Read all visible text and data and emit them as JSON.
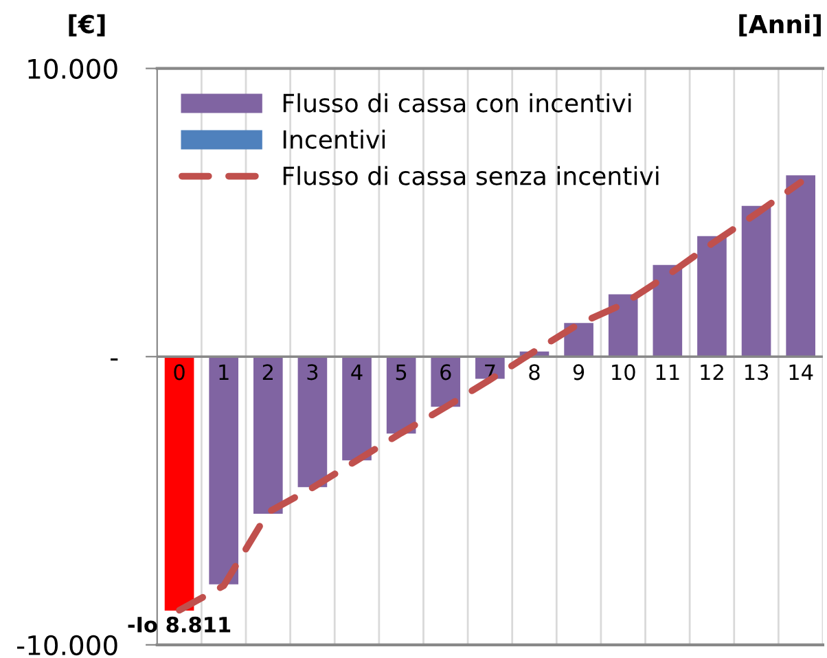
{
  "chart_data": {
    "type": "bar",
    "ylabel": "[€]",
    "xlabel": "[Anni]",
    "categories": [
      "0",
      "1",
      "2",
      "3",
      "4",
      "5",
      "6",
      "7",
      "8",
      "9",
      "10",
      "11",
      "12",
      "13",
      "14"
    ],
    "series": [
      {
        "name": "Flusso di cassa con incentivi",
        "color": "#8064a2",
        "colors": [
          "#ff0000",
          "#8064a2",
          "#8064a2",
          "#8064a2",
          "#8064a2",
          "#8064a2",
          "#8064a2",
          "#8064a2",
          "#8064a2",
          "#8064a2",
          "#8064a2",
          "#8064a2",
          "#8064a2",
          "#8064a2",
          "#8064a2"
        ],
        "values": [
          -8811,
          -7900,
          -5450,
          -4530,
          -3600,
          -2670,
          -1740,
          -770,
          180,
          1170,
          2160,
          3180,
          4180,
          5230,
          6290
        ],
        "value_labels": [
          "-Io 8.811",
          null,
          null,
          null,
          null,
          null,
          null,
          null,
          null,
          null,
          null,
          null,
          null,
          null,
          null
        ]
      },
      {
        "name": "Incentivi",
        "color": "#4f81bd",
        "values": [
          0,
          0,
          0,
          0,
          0,
          0,
          0,
          0,
          0,
          0,
          0,
          0,
          0,
          0,
          0
        ]
      },
      {
        "name": "Flusso di cassa senza incentivi",
        "type": "line",
        "color": "#c0504d",
        "line_style": "dashed",
        "marker": "none",
        "values": [
          -8800,
          -7950,
          -5400,
          -4550,
          -3600,
          -2650,
          -1750,
          -800,
          180,
          1130,
          1820,
          2820,
          3920,
          4960,
          6050
        ]
      }
    ],
    "ylim": [
      -10000,
      10000
    ],
    "yticks": [
      {
        "value": 10000,
        "label": "10.000"
      },
      {
        "value": 0,
        "label": "-"
      },
      {
        "value": -10000,
        "label": "-10.000"
      }
    ],
    "grid": "x",
    "legend": "top left"
  }
}
